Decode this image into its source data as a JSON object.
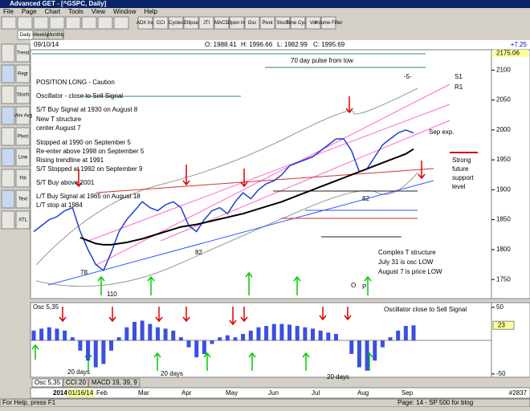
{
  "window": {
    "title": "Advanced GET - [^GSPC, Daily]",
    "menu": [
      "File",
      "Page",
      "Chart",
      "Tools",
      "View",
      "Window",
      "Help"
    ]
  },
  "toolbar": [
    "ADX Ind",
    "CCI",
    "Cycles",
    "Ellipse",
    "JTI",
    "MACD",
    "Open Int",
    "Osc",
    "Pivot",
    "Stoch",
    "Time Cycle",
    "Vol",
    "Volume Filter"
  ],
  "tabs": [
    "Daily",
    "Weekly",
    "Monthly"
  ],
  "side_toolbar": [
    "Trend",
    "Regr",
    "Stoch",
    "Mov Avg",
    "Pivot",
    "Line",
    "Fib",
    "Text",
    "XTL"
  ],
  "quote": {
    "date": "09/10/14",
    "open": "O: 1988.41",
    "high": "H: 1996.66",
    "low": "L: 1982.99",
    "close": "C: 1995.69",
    "change": "+7.25"
  },
  "chart_data": [
    {
      "type": "line",
      "top_label": 2175.06,
      "series": [
        {
          "color": "#1f3fd0",
          "values": [
            1830,
            1840,
            1850,
            1855,
            1865,
            1870,
            1830,
            1800,
            1775,
            1765,
            1795,
            1830,
            1850,
            1865,
            1880,
            1870,
            1865,
            1875,
            1880,
            1870,
            1840,
            1830,
            1850,
            1865,
            1870,
            1860,
            1880,
            1895,
            1885,
            1900,
            1910,
            1915,
            1925,
            1940,
            1945,
            1950,
            1955,
            1965,
            1975,
            1985,
            1985,
            1965,
            1930,
            1935,
            1955,
            1975,
            1985,
            1995,
            2000,
            1995
          ]
        },
        {
          "color": "#000000",
          "values": [
            null,
            null,
            null,
            null,
            null,
            null,
            1820,
            1815,
            1810,
            1808,
            1808,
            1810,
            1812,
            1815,
            1818,
            1822,
            1826,
            1830,
            1834,
            1838,
            1840,
            1842,
            1845,
            1848,
            1851,
            1854,
            1857,
            1860,
            1864,
            1868,
            1872,
            1876,
            1880,
            1885,
            1890,
            1895,
            1900,
            1905,
            1910,
            1915,
            1920,
            1925,
            1930,
            1935,
            1940,
            1945,
            1950,
            1955,
            1960,
            1968
          ]
        }
      ],
      "ylim": [
        1718,
        2134
      ],
      "yticks": [
        1750,
        1800,
        1850,
        1900,
        1950,
        2000,
        2050,
        2100
      ]
    },
    {
      "type": "bar",
      "title": "Osc 5,35",
      "color": "#3b4fe0",
      "values": [
        15,
        18,
        20,
        18,
        15,
        5,
        -15,
        -30,
        -40,
        -35,
        -15,
        5,
        20,
        28,
        30,
        25,
        20,
        18,
        15,
        5,
        -10,
        -25,
        -20,
        -5,
        5,
        8,
        5,
        10,
        15,
        20,
        22,
        25,
        25,
        24,
        22,
        20,
        18,
        15,
        12,
        10,
        0,
        -20,
        -40,
        -45,
        -30,
        -10,
        5,
        15,
        22,
        23
      ],
      "ylim": [
        -55,
        57
      ],
      "yticks": [
        50,
        -50
      ]
    }
  ],
  "annotations": [
    "POSITION LONG - Caution",
    "Oscillator - close to Sell Signal",
    "S/T Buy Signal at 1930 on August 8",
    "New T structure",
    "center August 7",
    "Stopped at 1990 on September 5",
    "Re-enter above 1998 on September 5",
    "Rising trendline at 1991",
    "S/T Stopped at 1992 on September 9",
    "S/T Buy above 2001",
    "L/T Buy Signal at 1965 on August 18",
    "L/T stop at 1984",
    "70 day pulse from low",
    "S1",
    "R1",
    "Sep exp.",
    "Strong",
    "future",
    "support",
    "level",
    "Complex T structure",
    "July 31 is osc LOW",
    "August 7 is price LOW",
    "O",
    "P",
    "-5-",
    "78",
    "110",
    "82",
    "82",
    "Oscillator close to Sell Signal",
    "20 days",
    "20 days",
    "20 days"
  ],
  "indicator_tabs": [
    "Osc 5,35",
    "CCI 20",
    "MACD 19, 39, 9"
  ],
  "axis": {
    "year": "2014",
    "start": "01/16/14",
    "months": [
      "Feb",
      "Mar",
      "Apr",
      "May",
      "Jun",
      "Jul",
      "Aug",
      "Sep"
    ]
  },
  "status": {
    "help": "For Help, press F1",
    "page": "Page: 14 - SP 500 for blog",
    "count": "#2837"
  }
}
